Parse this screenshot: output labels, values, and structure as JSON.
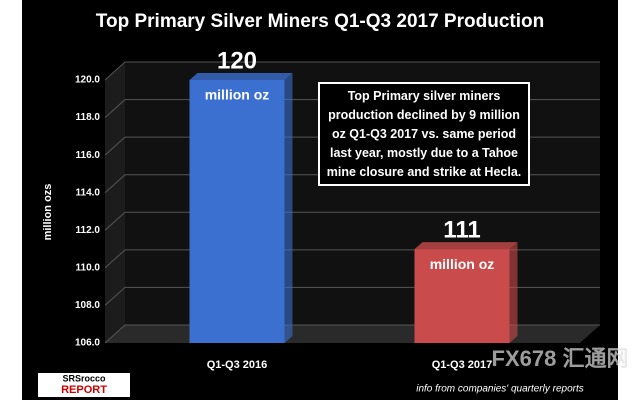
{
  "chart_data": {
    "type": "bar",
    "title": "Top Primary Silver Miners Q1-Q3 2017 Production",
    "y_label": "million ozs",
    "categories": [
      "Q1-Q3 2016",
      "Q1-Q3 2017"
    ],
    "values": [
      120,
      111
    ],
    "value_unit": "million oz",
    "colors": [
      "#3b6fd0",
      "#c94b4b"
    ],
    "ylim": [
      106,
      120
    ],
    "yticks": [
      {
        "value": 106,
        "label": "106.0"
      },
      {
        "value": 108,
        "label": "108.0"
      },
      {
        "value": 110,
        "label": "110.0"
      },
      {
        "value": 112,
        "label": "112.0"
      },
      {
        "value": 114,
        "label": "114.0"
      },
      {
        "value": 116,
        "label": "116.0"
      },
      {
        "value": 118,
        "label": "118.0"
      },
      {
        "value": 120,
        "label": "120.0"
      }
    ],
    "grid": true,
    "annotation": "Top Primary silver miners production declined by 9 million oz Q1-Q3 2017 vs. same period last year, mostly due to a Tahoe mine closure and strike at Hecla.",
    "source": "info from companies' quarterly reports",
    "logo": [
      "SRSrocco",
      "REPORT"
    ],
    "watermark": "FX678 汇通网"
  }
}
